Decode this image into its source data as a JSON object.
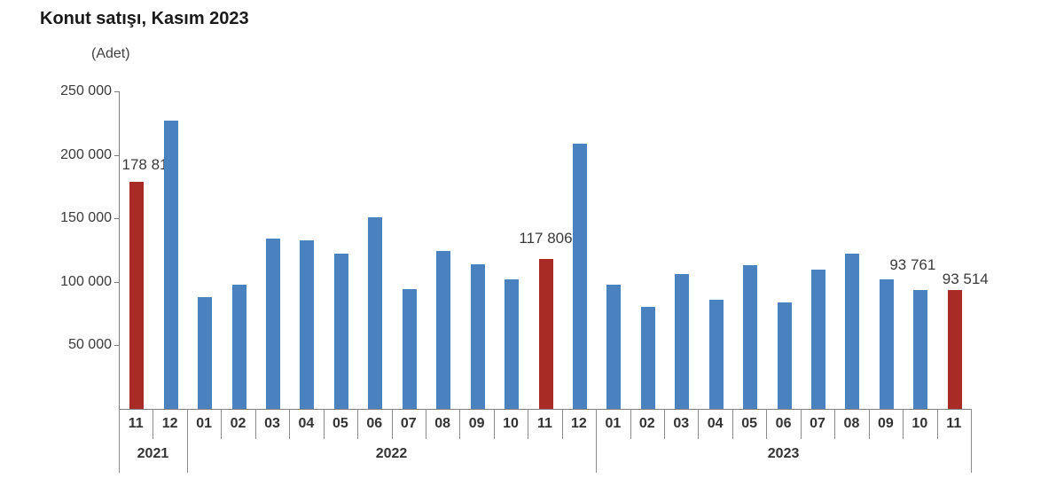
{
  "chart_data": {
    "type": "bar",
    "title": "Konut satışı, Kasım 2023",
    "unit_label": "(Adet)",
    "ylim": [
      0,
      250000
    ],
    "grid": false,
    "legend": "none",
    "yticks": [
      {
        "value": 250000,
        "label": "250 000"
      },
      {
        "value": 200000,
        "label": "200 000"
      },
      {
        "value": 150000,
        "label": "150 000"
      },
      {
        "value": 100000,
        "label": "100 000"
      },
      {
        "value": 50000,
        "label": "50 000"
      }
    ],
    "colors": {
      "bar_blue": "#4A81BF",
      "bar_red": "#A92B25",
      "axis": "#7F7F7F",
      "separator": "#8C8C8C",
      "text": "#333333",
      "annotation": "#3A3A3A"
    },
    "groups": [
      {
        "year": "2021",
        "months": [
          "11",
          "12"
        ]
      },
      {
        "year": "2022",
        "months": [
          "01",
          "02",
          "03",
          "04",
          "05",
          "06",
          "07",
          "08",
          "09",
          "10",
          "11",
          "12"
        ]
      },
      {
        "year": "2023",
        "months": [
          "01",
          "02",
          "03",
          "04",
          "05",
          "06",
          "07",
          "08",
          "09",
          "10",
          "11"
        ]
      }
    ],
    "bars": [
      {
        "year": "2021",
        "month": "11",
        "value": 178814,
        "highlight": true,
        "label": "178 814",
        "label_dx": 14,
        "label_dy": 9
      },
      {
        "year": "2021",
        "month": "12",
        "value": 227000,
        "highlight": false
      },
      {
        "year": "2022",
        "month": "01",
        "value": 88000,
        "highlight": false
      },
      {
        "year": "2022",
        "month": "02",
        "value": 98000,
        "highlight": false
      },
      {
        "year": "2022",
        "month": "03",
        "value": 134000,
        "highlight": false
      },
      {
        "year": "2022",
        "month": "04",
        "value": 133000,
        "highlight": false
      },
      {
        "year": "2022",
        "month": "05",
        "value": 122000,
        "highlight": false
      },
      {
        "year": "2022",
        "month": "06",
        "value": 150500,
        "highlight": false
      },
      {
        "year": "2022",
        "month": "07",
        "value": 94000,
        "highlight": false
      },
      {
        "year": "2022",
        "month": "08",
        "value": 124000,
        "highlight": false
      },
      {
        "year": "2022",
        "month": "09",
        "value": 113500,
        "highlight": false
      },
      {
        "year": "2022",
        "month": "10",
        "value": 102000,
        "highlight": false
      },
      {
        "year": "2022",
        "month": "11",
        "value": 117806,
        "highlight": true,
        "label": "117 806",
        "label_dx": 0,
        "label_dy": 13
      },
      {
        "year": "2022",
        "month": "12",
        "value": 208500,
        "highlight": false
      },
      {
        "year": "2023",
        "month": "01",
        "value": 97500,
        "highlight": false
      },
      {
        "year": "2023",
        "month": "02",
        "value": 80000,
        "highlight": false
      },
      {
        "year": "2023",
        "month": "03",
        "value": 106000,
        "highlight": false
      },
      {
        "year": "2023",
        "month": "04",
        "value": 86000,
        "highlight": false
      },
      {
        "year": "2023",
        "month": "05",
        "value": 113000,
        "highlight": false
      },
      {
        "year": "2023",
        "month": "06",
        "value": 83500,
        "highlight": false
      },
      {
        "year": "2023",
        "month": "07",
        "value": 109500,
        "highlight": false
      },
      {
        "year": "2023",
        "month": "08",
        "value": 122000,
        "highlight": false
      },
      {
        "year": "2023",
        "month": "09",
        "value": 102000,
        "highlight": false
      },
      {
        "year": "2023",
        "month": "10",
        "value": 93761,
        "highlight": false,
        "label": "93 761",
        "label_dx": -9,
        "label_dy": 18
      },
      {
        "year": "2023",
        "month": "11",
        "value": 93514,
        "highlight": true,
        "label": "93 514",
        "label_dx": 12,
        "label_dy": 2
      }
    ]
  }
}
